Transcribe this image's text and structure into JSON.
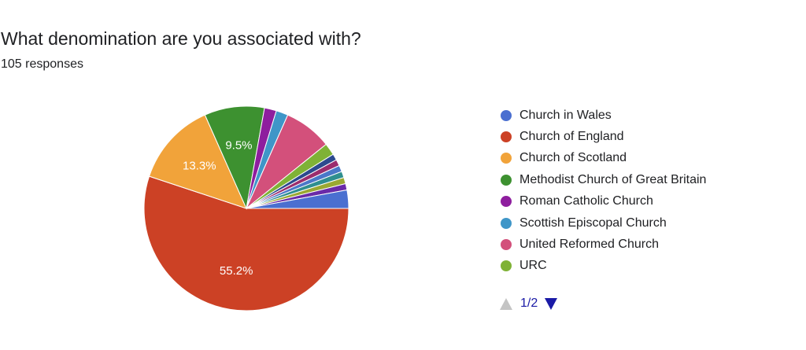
{
  "header": {
    "question": "What denomination are you associated with?",
    "responses": "105 responses"
  },
  "chart_data": {
    "type": "pie",
    "total_responses": 105,
    "start": "3 o'clock, clockwise",
    "slices": [
      {
        "name": "Church of England",
        "percent": 55.2,
        "label": "55.2%",
        "color": "#cc4125"
      },
      {
        "name": "Church of Scotland",
        "percent": 13.3,
        "label": "13.3%",
        "color": "#f1a33a"
      },
      {
        "name": "Methodist Church of Great Britain",
        "percent": 9.5,
        "label": "9.5%",
        "color": "#3d9130"
      },
      {
        "name": "Roman Catholic Church",
        "percent": 1.9,
        "label": "",
        "color": "#8e1e9e"
      },
      {
        "name": "Scottish Episcopal Church",
        "percent": 1.9,
        "label": "",
        "color": "#3f96c8"
      },
      {
        "name": "United Reformed Church",
        "percent": 7.6,
        "label": "",
        "color": "#d3507b"
      },
      {
        "name": "URC",
        "percent": 1.9,
        "label": "",
        "color": "#7fb236"
      },
      {
        "name": "",
        "percent": 1.0,
        "label": "",
        "color": "#2c4a8e"
      },
      {
        "name": "",
        "percent": 1.0,
        "label": "",
        "color": "#9b2d6e"
      },
      {
        "name": "",
        "percent": 1.0,
        "label": "",
        "color": "#4a78c8"
      },
      {
        "name": "",
        "percent": 1.0,
        "label": "",
        "color": "#2f8f8f"
      },
      {
        "name": "",
        "percent": 1.0,
        "label": "",
        "color": "#9aa832"
      },
      {
        "name": "",
        "percent": 1.0,
        "label": "",
        "color": "#6a2aa8"
      },
      {
        "name": "Church in Wales",
        "percent": 2.9,
        "label": "",
        "color": "#4a6fd0"
      }
    ]
  },
  "legend": {
    "items": [
      {
        "label": "Church in Wales",
        "color": "#4a6fd0"
      },
      {
        "label": "Church of England",
        "color": "#cc4125"
      },
      {
        "label": "Church of Scotland",
        "color": "#f1a33a"
      },
      {
        "label": "Methodist Church of Great Britain",
        "color": "#3d9130"
      },
      {
        "label": "Roman Catholic Church",
        "color": "#8e1e9e"
      },
      {
        "label": "Scottish Episcopal Church",
        "color": "#3f96c8"
      },
      {
        "label": "United Reformed Church",
        "color": "#d3507b"
      },
      {
        "label": "URC",
        "color": "#7fb236"
      }
    ],
    "pager": {
      "label": "1/2",
      "prev_icon": "triangle-up-icon",
      "next_icon": "triangle-down-icon",
      "prev_color": "#c4c4c4",
      "next_color": "#1a1aa6"
    }
  }
}
